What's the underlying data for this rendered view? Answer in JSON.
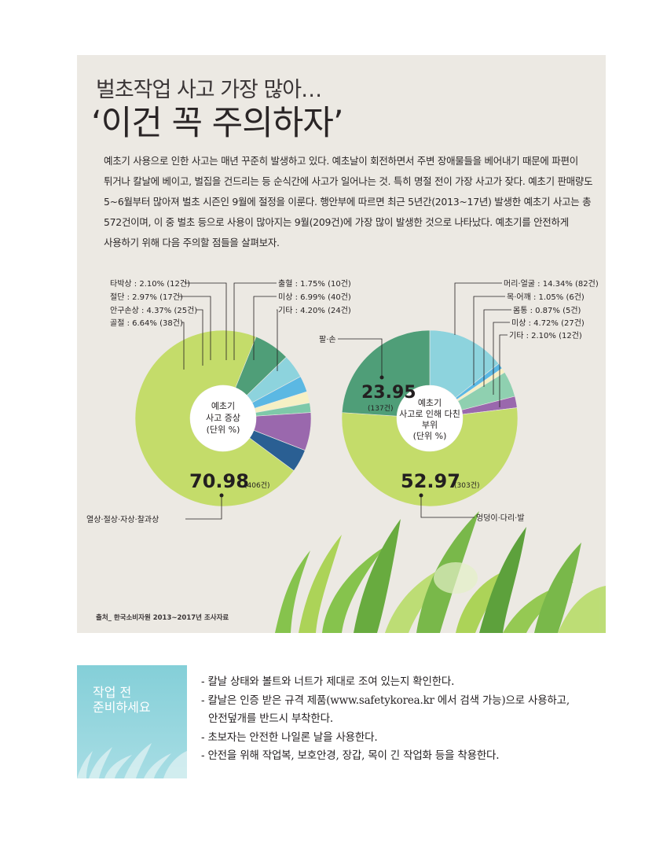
{
  "header": {
    "title_line1": "벌초작업 사고 가장 많아…",
    "title_line2": "‘이건 꼭 주의하자’"
  },
  "intro": [
    "예초기 사용으로 인한 사고는 매년 꾸준히 발생하고 있다. 예초날이 회전하면서 주변 장애물들을 베어내기 때문에 파편이",
    "튀거나 칼날에 베이고, 벌집을 건드리는 등 순식간에 사고가 일어나는 것. 특히 명절 전이 가장 사고가 잦다. 예초기 판매량도",
    "5~6월부터 많아져 벌초 시즌인 9월에 절정을 이룬다. 행안부에 따르면 최근 5년간(2013~17년) 발생한 예초기 사고는 총",
    "572건이며, 이 중 벌초 등으로 사용이 많아지는 9월(209건)에 가장 많이 발생한 것으로 나타났다. 예초기를 안전하게",
    "사용하기 위해 다음 주의할 점들을 살펴보자."
  ],
  "colors": {
    "panel_bg": "#ece9e3",
    "lime": "#c4dc6a",
    "green_dark": "#4f9e78",
    "green_mid": "#5aa783",
    "teal_light": "#7ec9a9",
    "sky": "#8dd3dd",
    "blue": "#5bb8e3",
    "cream": "#f6f0c4",
    "mint": "#8fd0b0",
    "purple": "#9a68ad",
    "navy": "#2a5f93",
    "box_bg": "#8fd4dc"
  },
  "chart_data": [
    {
      "type": "pie",
      "title": "예초기 사고 증상 (단위 %)",
      "center_lines": [
        "예초기",
        "사고 증상",
        "(단위 %)"
      ],
      "series": [
        {
          "name": "열상·절상·자상·찰과상",
          "value": 70.98,
          "count": "406건",
          "color": "#c4dc6a"
        },
        {
          "name": "골절",
          "value": 6.64,
          "count": "38건",
          "color": "#4f9e78"
        },
        {
          "name": "안구손상",
          "value": 4.37,
          "count": "25건",
          "color": "#8dd3dd"
        },
        {
          "name": "절단",
          "value": 2.97,
          "count": "17건",
          "color": "#5bb8e3"
        },
        {
          "name": "타박상",
          "value": 2.1,
          "count": "12건",
          "color": "#f6f0c4"
        },
        {
          "name": "출혈",
          "value": 1.75,
          "count": "10건",
          "color": "#7ec9a9"
        },
        {
          "name": "미상",
          "value": 6.99,
          "count": "40건",
          "color": "#9a68ad"
        },
        {
          "name": "기타",
          "value": 4.2,
          "count": "24건",
          "color": "#2a5f93"
        }
      ],
      "labels": [
        {
          "text": "타박상 : 2.10% (12건)"
        },
        {
          "text": "절단 : 2.97% (17건)"
        },
        {
          "text": "안구손상 : 4.37% (25건)"
        },
        {
          "text": "골절 : 6.64% (38건)"
        },
        {
          "text": "출혈 : 1.75% (10건)"
        },
        {
          "text": "미상 : 6.99% (40건)"
        },
        {
          "text": "기타 : 4.20% (24건)"
        },
        {
          "text": "열상·절상·자상·찰과상"
        }
      ],
      "big_value": "70.98",
      "big_count": "(406건)"
    },
    {
      "type": "pie",
      "title": "예초기 사고로 인해 다친 부위 (단위 %)",
      "center_lines": [
        "예초기",
        "사고로 인해 다친",
        "부위",
        "(단위 %)"
      ],
      "series": [
        {
          "name": "머리·얼굴",
          "value": 14.34,
          "count": "82건",
          "color": "#8dd3dd"
        },
        {
          "name": "목·어깨",
          "value": 1.05,
          "count": "6건",
          "color": "#5bb8e3"
        },
        {
          "name": "몸통",
          "value": 0.87,
          "count": "5건",
          "color": "#f6f0c4"
        },
        {
          "name": "미상",
          "value": 4.72,
          "count": "27건",
          "color": "#8fd0b0"
        },
        {
          "name": "기타",
          "value": 2.1,
          "count": "12건",
          "color": "#9a68ad"
        },
        {
          "name": "엉덩이·다리·발",
          "value": 52.97,
          "count": "303건",
          "color": "#c4dc6a"
        },
        {
          "name": "팔·손",
          "value": 23.95,
          "count": "137건",
          "color": "#4f9e78"
        }
      ],
      "labels": [
        {
          "text": "머리·얼굴 : 14.34% (82건)"
        },
        {
          "text": "목·어깨 : 1.05% (6건)"
        },
        {
          "text": "몸통 : 0.87% (5건)"
        },
        {
          "text": "미상 : 4.72% (27건)"
        },
        {
          "text": "기타 : 2.10% (12건)"
        },
        {
          "text": "팔·손"
        },
        {
          "text": "엉덩이·다리·발"
        }
      ],
      "big_value": "52.97",
      "big_count": "(303건)",
      "second_value": "23.95",
      "second_count": "(137건)"
    }
  ],
  "source": "출처_ 한국소비자원 2013~2017년 조사자료",
  "tip_box": {
    "title_line1": "작업 전",
    "title_line2": "준비하세요"
  },
  "tips": [
    "- 칼날 상태와 볼트와 너트가 제대로 조여 있는지 확인한다.",
    "- 칼날은 인증 받은 규격 제품(www.safetykorea.kr 에서 검색 가능)으로 사용하고,",
    "  안전덮개를 반드시 부착한다.",
    "- 초보자는 안전한 나일론 날을 사용한다.",
    "- 안전을 위해 작업복, 보호안경, 장갑, 목이 긴 작업화 등을 착용한다."
  ]
}
